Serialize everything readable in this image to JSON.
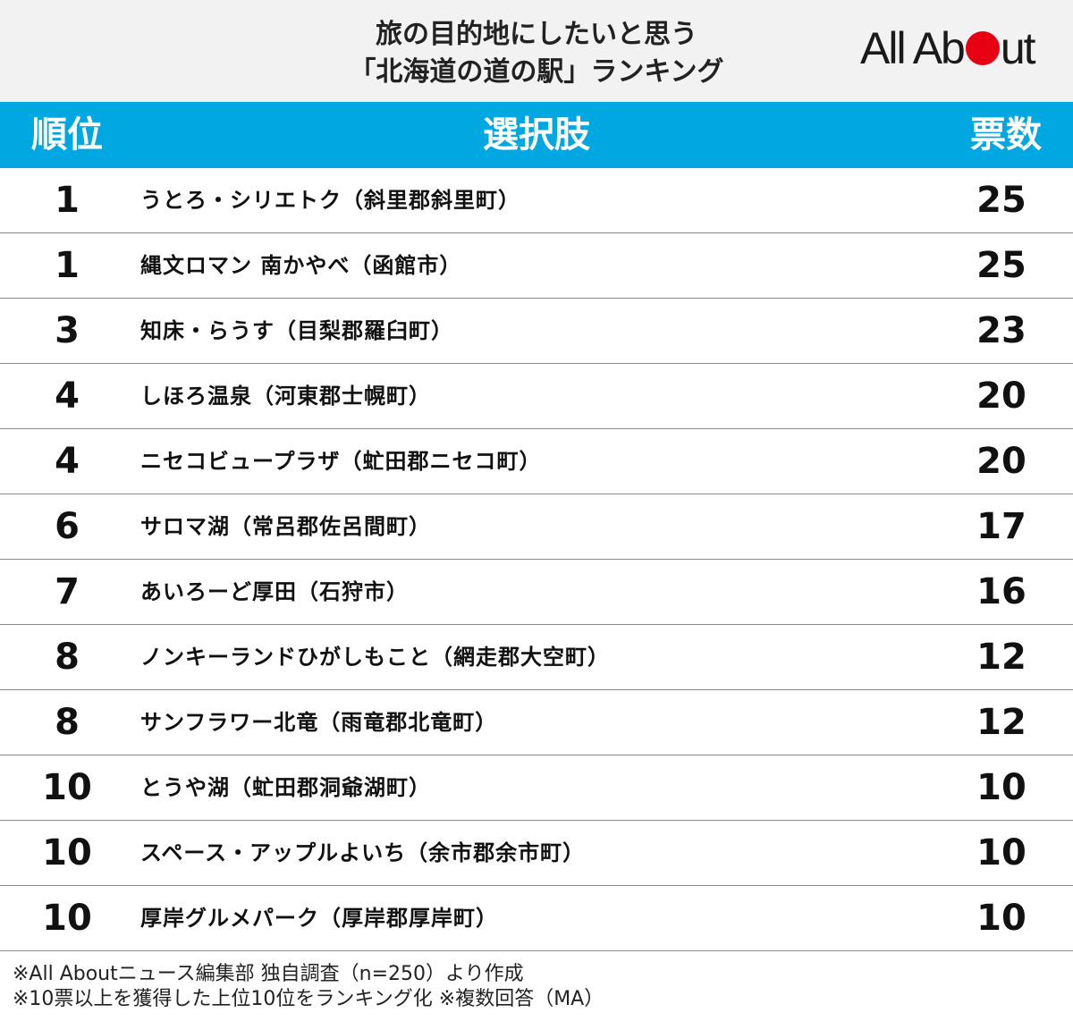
{
  "header": {
    "title_line1": "旅の目的地にしたいと思う",
    "title_line2": "「北海道の道の駅」ランキング",
    "logo_part1": "All Ab",
    "logo_part2": "ut",
    "logo_dot_color": "#e60012"
  },
  "colors": {
    "header_bar": "#00a7e1",
    "header_bg": "#f2f2f2"
  },
  "table": {
    "headers": {
      "rank": "順位",
      "choice": "選択肢",
      "votes": "票数"
    },
    "rows": [
      {
        "rank": "1",
        "choice": "うとろ・シリエトク（斜里郡斜里町）",
        "votes": "25"
      },
      {
        "rank": "1",
        "choice": "縄文ロマン 南かやべ（函館市）",
        "votes": "25"
      },
      {
        "rank": "3",
        "choice": "知床・らうす（目梨郡羅臼町）",
        "votes": "23"
      },
      {
        "rank": "4",
        "choice": "しほろ温泉（河東郡士幌町）",
        "votes": "20"
      },
      {
        "rank": "4",
        "choice": "ニセコビュープラザ（虻田郡ニセコ町）",
        "votes": "20"
      },
      {
        "rank": "6",
        "choice": "サロマ湖（常呂郡佐呂間町）",
        "votes": "17"
      },
      {
        "rank": "7",
        "choice": "あいろーど厚田（石狩市）",
        "votes": "16"
      },
      {
        "rank": "8",
        "choice": "ノンキーランドひがしもこと（網走郡大空町）",
        "votes": "12"
      },
      {
        "rank": "8",
        "choice": "サンフラワー北竜（雨竜郡北竜町）",
        "votes": "12"
      },
      {
        "rank": "10",
        "choice": "とうや湖（虻田郡洞爺湖町）",
        "votes": "10"
      },
      {
        "rank": "10",
        "choice": "スペース・アップルよいち（余市郡余市町）",
        "votes": "10"
      },
      {
        "rank": "10",
        "choice": "厚岸グルメパーク（厚岸郡厚岸町）",
        "votes": "10"
      }
    ]
  },
  "notes": {
    "line1": "※All Aboutニュース編集部 独自調査（n=250）より作成",
    "line2": "※10票以上を獲得した上位10位をランキング化 ※複数回答（MA）"
  },
  "chart_data": {
    "type": "table",
    "title": "旅の目的地にしたいと思う「北海道の道の駅」ランキング",
    "columns": [
      "順位",
      "選択肢",
      "票数"
    ],
    "rows": [
      [
        "1",
        "うとろ・シリエトク（斜里郡斜里町）",
        25
      ],
      [
        "1",
        "縄文ロマン 南かやべ（函館市）",
        25
      ],
      [
        "3",
        "知床・らうす（目梨郡羅臼町）",
        23
      ],
      [
        "4",
        "しほろ温泉（河東郡士幌町）",
        20
      ],
      [
        "4",
        "ニセコビュープラザ（虻田郡ニセコ町）",
        20
      ],
      [
        "6",
        "サロマ湖（常呂郡佐呂間町）",
        17
      ],
      [
        "7",
        "あいろーど厚田（石狩市）",
        16
      ],
      [
        "8",
        "ノンキーランドひがしもこと（網走郡大空町）",
        12
      ],
      [
        "8",
        "サンフラワー北竜（雨竜郡北竜町）",
        12
      ],
      [
        "10",
        "とうや湖（虻田郡洞爺湖町）",
        10
      ],
      [
        "10",
        "スペース・アップルよいち（余市郡余市町）",
        10
      ],
      [
        "10",
        "厚岸グルメパーク（厚岸郡厚岸町）",
        10
      ]
    ]
  }
}
